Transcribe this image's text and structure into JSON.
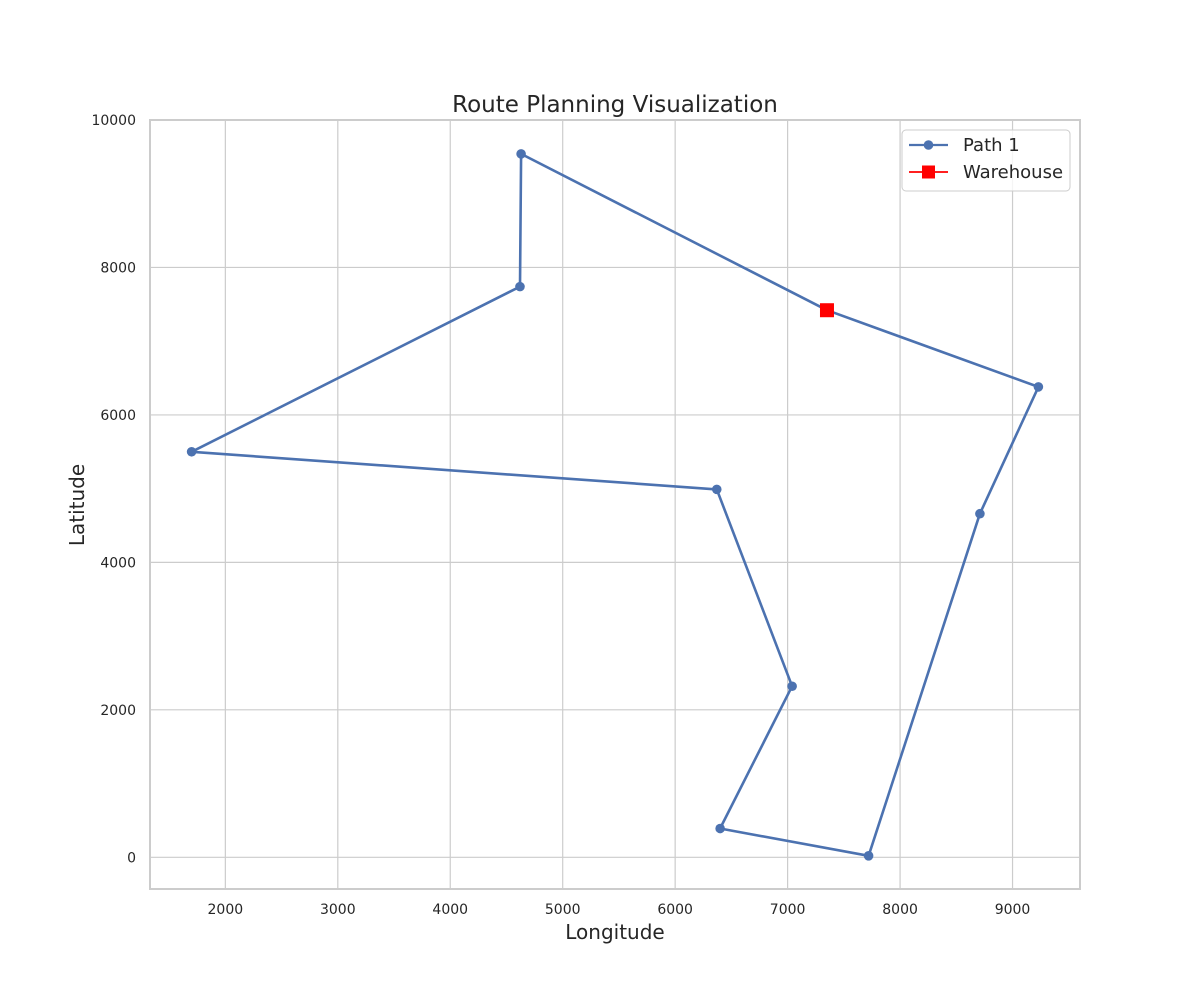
{
  "chart_data": {
    "type": "line",
    "title": "Route Planning Visualization",
    "xlabel": "Longitude",
    "ylabel": "Latitude",
    "xlim": [
      1330,
      9600
    ],
    "ylim": [
      -430,
      10000
    ],
    "xticks": [
      2000,
      3000,
      4000,
      5000,
      6000,
      7000,
      8000,
      9000
    ],
    "yticks": [
      0,
      2000,
      4000,
      6000,
      8000,
      10000
    ],
    "grid": true,
    "legend_position": "top-right",
    "series": [
      {
        "name": "Path 1",
        "color": "#4c72b0",
        "marker": "circle",
        "x": [
          7350,
          9230,
          8710,
          7720,
          6400,
          7040,
          6370,
          1700,
          4620,
          4630,
          7350
        ],
        "y": [
          7420,
          6380,
          4660,
          20,
          390,
          2320,
          4990,
          5500,
          7740,
          9540,
          7420
        ]
      }
    ],
    "points": [
      {
        "name": "Warehouse",
        "color": "#ff0000",
        "marker": "square",
        "x": 7350,
        "y": 7420
      }
    ]
  }
}
